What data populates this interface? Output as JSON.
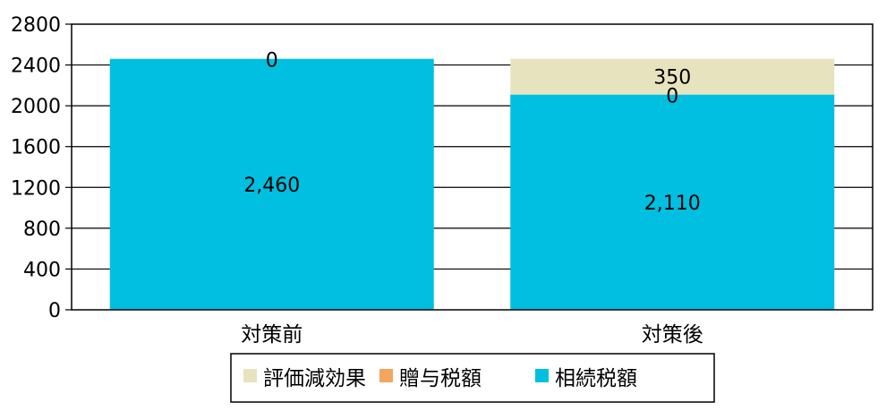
{
  "chart_data": {
    "type": "bar",
    "stacked": true,
    "categories": [
      "対策前",
      "対策後"
    ],
    "series": [
      {
        "name": "相続税額",
        "values": [
          2460,
          2110
        ],
        "labels": [
          "2,460",
          "2,110"
        ],
        "color": "#00BFE0"
      },
      {
        "name": "贈与税額",
        "values": [
          0,
          0
        ],
        "labels": [
          "0",
          "0"
        ],
        "color": "#F2A65E"
      },
      {
        "name": "評価減効果",
        "values": [
          0,
          350
        ],
        "labels": [
          "",
          "350"
        ],
        "color": "#E8E3BF"
      }
    ],
    "yticks": [
      "0",
      "400",
      "800",
      "1200",
      "1600",
      "2000",
      "2400",
      "2800"
    ],
    "ylim": [
      0,
      2800
    ],
    "grid": true,
    "legend_position": "bottom",
    "legend_order": [
      "評価減効果",
      "贈与税額",
      "相続税額"
    ]
  }
}
